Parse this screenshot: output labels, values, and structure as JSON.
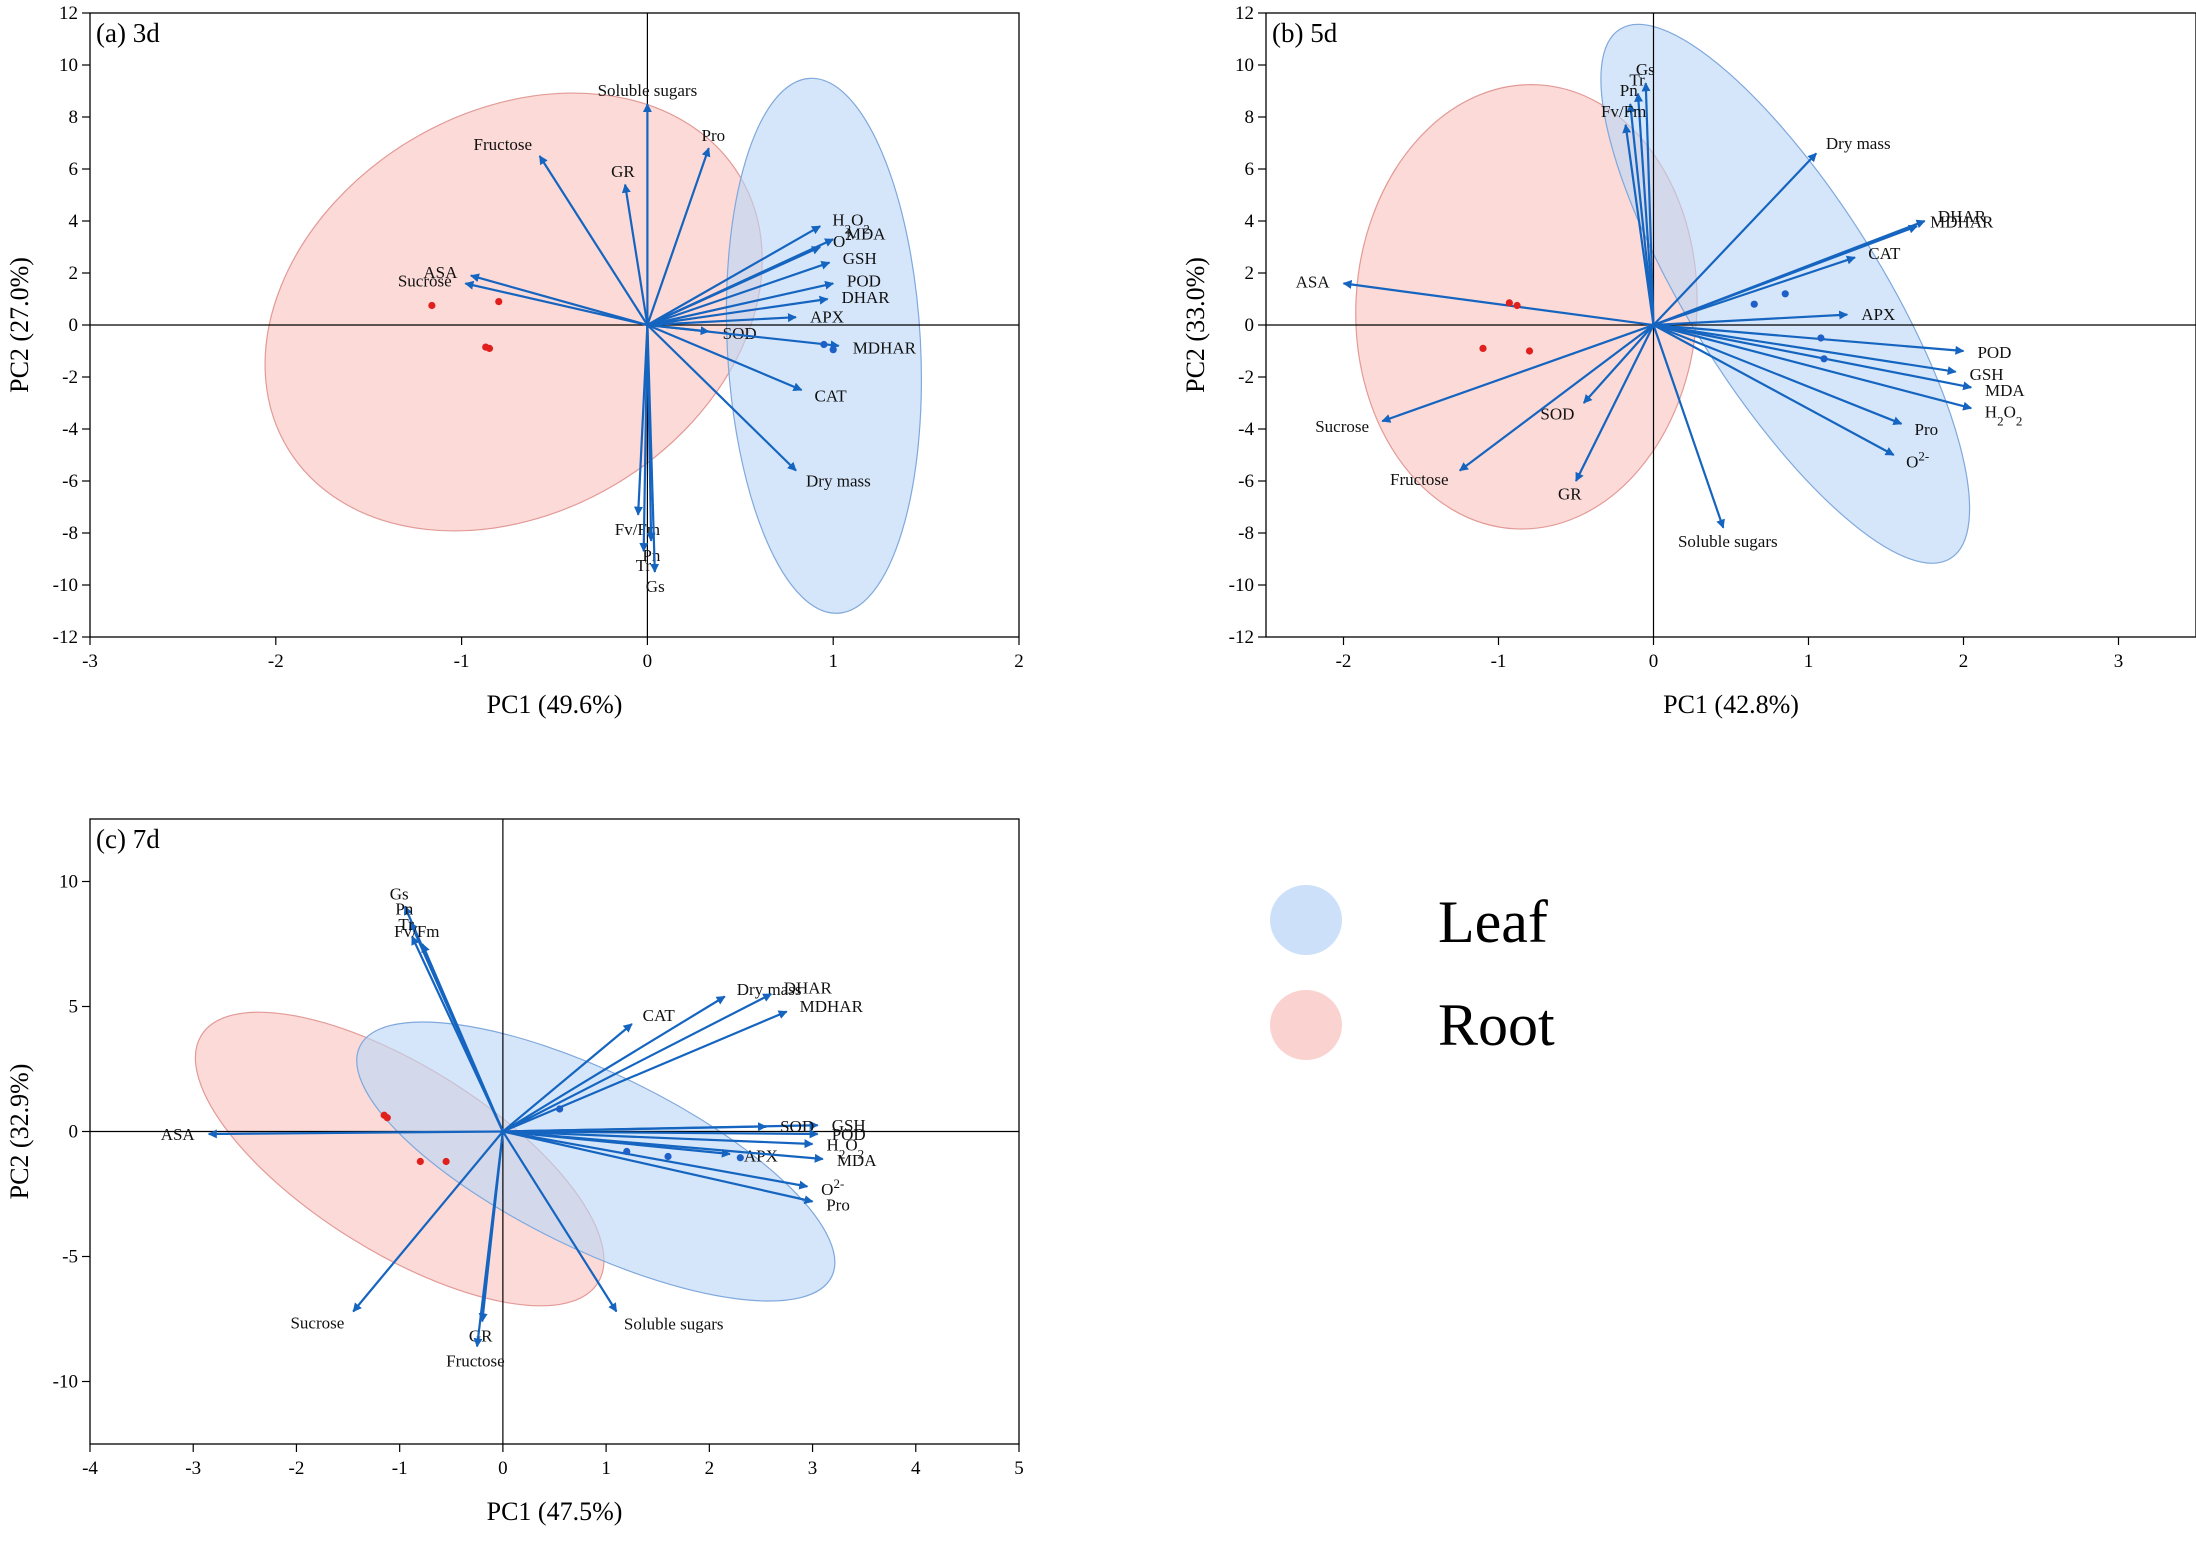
{
  "figure": {
    "legend": [
      {
        "label": "Leaf",
        "color": "#a9c9f2"
      },
      {
        "label": "Root",
        "color": "#f6b3b0"
      }
    ]
  },
  "colors": {
    "arrow": "#1565c0",
    "leaf_fill": "#bcd6f7",
    "leaf_stroke": "#7fa8dc",
    "root_fill": "#f8c4c0",
    "root_stroke": "#e39a96",
    "leaf_point": "#1e5fc8",
    "root_point": "#e0201c"
  },
  "chart_data": [
    {
      "type": "scatter",
      "title": "(a) 3d",
      "xlabel": "PC1 (49.6%)",
      "ylabel": "PC2 (27.0%)",
      "xlim": [
        -3,
        2
      ],
      "ylim": [
        -12,
        12
      ],
      "xticks": [
        -3,
        -2,
        -1,
        0,
        1,
        2
      ],
      "yticks": [
        -12,
        -10,
        -8,
        -6,
        -4,
        -2,
        0,
        2,
        4,
        6,
        8,
        10,
        12
      ],
      "loadings": [
        {
          "label": "Soluble sugars",
          "x": 0.0,
          "y": 8.5
        },
        {
          "label": "Pro",
          "x": 0.33,
          "y": 6.8
        },
        {
          "label": "Fructose",
          "x": -0.58,
          "y": 6.5
        },
        {
          "label": "GR",
          "x": -0.12,
          "y": 5.4
        },
        {
          "label": "ASA",
          "x": -0.95,
          "y": 1.9
        },
        {
          "label": "Sucrose",
          "x": -0.98,
          "y": 1.6
        },
        {
          "label": "H2O2",
          "x": 0.93,
          "y": 3.8
        },
        {
          "label": "O2-",
          "x": 0.93,
          "y": 3.0
        },
        {
          "label": "MDA",
          "x": 1.0,
          "y": 3.3
        },
        {
          "label": "GSH",
          "x": 0.98,
          "y": 2.4
        },
        {
          "label": "POD",
          "x": 1.0,
          "y": 1.6
        },
        {
          "label": "DHAR",
          "x": 0.97,
          "y": 1.0
        },
        {
          "label": "APX",
          "x": 0.8,
          "y": 0.3
        },
        {
          "label": "SOD",
          "x": 0.33,
          "y": -0.25
        },
        {
          "label": "MDHAR",
          "x": 1.03,
          "y": -0.8
        },
        {
          "label": "CAT",
          "x": 0.83,
          "y": -2.5
        },
        {
          "label": "Dry mass",
          "x": 0.8,
          "y": -5.6
        },
        {
          "label": "Fv/Fm",
          "x": -0.05,
          "y": -7.3
        },
        {
          "label": "Pn",
          "x": 0.02,
          "y": -8.3
        },
        {
          "label": "Tr",
          "x": -0.02,
          "y": -8.7
        },
        {
          "label": "Gs",
          "x": 0.04,
          "y": -9.5
        }
      ],
      "groups": [
        {
          "name": "Root",
          "ellipse": {
            "cx": -0.72,
            "cy": 0.5,
            "rx": 1.42,
            "ry": 7.7,
            "rotate": -31
          },
          "points": [
            [
              -1.16,
              0.75
            ],
            [
              -0.8,
              0.9
            ],
            [
              -0.87,
              -0.85
            ],
            [
              -0.85,
              -0.9
            ]
          ]
        },
        {
          "name": "Leaf",
          "ellipse": {
            "cx": 0.95,
            "cy": -0.8,
            "rx": 0.52,
            "ry": 10.3,
            "rotate": -3
          },
          "points": [
            [
              0.95,
              -0.75
            ],
            [
              1.0,
              -0.95
            ]
          ]
        }
      ]
    },
    {
      "type": "scatter",
      "title": "(b) 5d",
      "xlabel": "PC1 (42.8%)",
      "ylabel": "PC2 (33.0%)",
      "xlim": [
        -2.5,
        3.5
      ],
      "ylim": [
        -12,
        12
      ],
      "xticks": [
        -2,
        -1,
        0,
        1,
        2,
        3
      ],
      "yticks": [
        -12,
        -10,
        -8,
        -6,
        -4,
        -2,
        0,
        2,
        4,
        6,
        8,
        10,
        12
      ],
      "loadings": [
        {
          "label": "Gs",
          "x": -0.05,
          "y": 9.3
        },
        {
          "label": "Tr",
          "x": -0.1,
          "y": 8.9
        },
        {
          "label": "Pn",
          "x": -0.15,
          "y": 8.5
        },
        {
          "label": "Fv/Fm",
          "x": -0.18,
          "y": 7.7
        },
        {
          "label": "Dry mass",
          "x": 1.05,
          "y": 6.6
        },
        {
          "label": "DHAR",
          "x": 1.75,
          "y": 4.0
        },
        {
          "label": "MDHAR",
          "x": 1.7,
          "y": 3.8
        },
        {
          "label": "CAT",
          "x": 1.3,
          "y": 2.6
        },
        {
          "label": "ASA",
          "x": -2.0,
          "y": 1.6
        },
        {
          "label": "APX",
          "x": 1.25,
          "y": 0.4
        },
        {
          "label": "POD",
          "x": 2.0,
          "y": -1.0
        },
        {
          "label": "GSH",
          "x": 1.95,
          "y": -1.8
        },
        {
          "label": "MDA",
          "x": 2.05,
          "y": -2.4
        },
        {
          "label": "Pro",
          "x": 1.6,
          "y": -3.8
        },
        {
          "label": "H2O2",
          "x": 2.05,
          "y": -3.2
        },
        {
          "label": "O2-",
          "x": 1.55,
          "y": -5.0
        },
        {
          "label": "Sucrose",
          "x": -1.75,
          "y": -3.7
        },
        {
          "label": "SOD",
          "x": -0.45,
          "y": -3.0
        },
        {
          "label": "Fructose",
          "x": -1.25,
          "y": -5.6
        },
        {
          "label": "GR",
          "x": -0.5,
          "y": -6.0
        },
        {
          "label": "Soluble sugars",
          "x": 0.45,
          "y": -7.8
        }
      ],
      "groups": [
        {
          "name": "Root",
          "ellipse": {
            "cx": -0.82,
            "cy": 0.7,
            "rx": 1.1,
            "ry": 8.55,
            "rotate": 3
          },
          "points": [
            [
              -0.93,
              0.85
            ],
            [
              -0.88,
              0.75
            ],
            [
              -1.1,
              -0.9
            ],
            [
              -0.8,
              -1.0
            ]
          ]
        },
        {
          "name": "Leaf",
          "ellipse": {
            "cx": 0.85,
            "cy": 1.2,
            "rx": 0.62,
            "ry": 12.0,
            "rotate": -32
          },
          "points": [
            [
              0.65,
              0.8
            ],
            [
              0.85,
              1.2
            ],
            [
              1.08,
              -0.5
            ],
            [
              1.1,
              -1.3
            ]
          ]
        }
      ]
    },
    {
      "type": "scatter",
      "title": "(c) 7d",
      "xlabel": "PC1 (47.5%)",
      "ylabel": "PC2 (32.9%)",
      "xlim": [
        -4,
        5
      ],
      "ylim": [
        -12.5,
        12.5
      ],
      "xticks": [
        -4,
        -3,
        -2,
        -1,
        0,
        1,
        2,
        3,
        4,
        5
      ],
      "yticks": [
        -10,
        -5,
        0,
        5,
        10
      ],
      "loadings": [
        {
          "label": "Gs",
          "x": -0.95,
          "y": 9.0
        },
        {
          "label": "Pn",
          "x": -0.9,
          "y": 8.4
        },
        {
          "label": "Tr",
          "x": -0.88,
          "y": 7.8
        },
        {
          "label": "Fv/Fm",
          "x": -0.78,
          "y": 7.5
        },
        {
          "label": "CAT",
          "x": 1.25,
          "y": 4.3
        },
        {
          "label": "Dry mass",
          "x": 2.15,
          "y": 5.4
        },
        {
          "label": "DHAR",
          "x": 2.6,
          "y": 5.5
        },
        {
          "label": "MDHAR",
          "x": 2.75,
          "y": 4.8
        },
        {
          "label": "ASA",
          "x": -2.85,
          "y": -0.1
        },
        {
          "label": "GSH",
          "x": 3.05,
          "y": 0.25
        },
        {
          "label": "SOD",
          "x": 2.55,
          "y": 0.2
        },
        {
          "label": "POD",
          "x": 3.05,
          "y": -0.1
        },
        {
          "label": "H2O2",
          "x": 3.0,
          "y": -0.5
        },
        {
          "label": "APX",
          "x": 2.2,
          "y": -0.9
        },
        {
          "label": "MDA",
          "x": 3.1,
          "y": -1.1
        },
        {
          "label": "O2-",
          "x": 2.95,
          "y": -2.2
        },
        {
          "label": "Pro",
          "x": 3.0,
          "y": -2.8
        },
        {
          "label": "Sucrose",
          "x": -1.45,
          "y": -7.2
        },
        {
          "label": "GR",
          "x": -0.2,
          "y": -7.6
        },
        {
          "label": "Fructose",
          "x": -0.25,
          "y": -8.6
        },
        {
          "label": "Soluble sugars",
          "x": 1.1,
          "y": -7.2
        }
      ],
      "groups": [
        {
          "name": "Root",
          "ellipse": {
            "cx": -1.0,
            "cy": -1.1,
            "rx": 0.9,
            "ry": 9.35,
            "rotate": -58
          },
          "points": [
            [
              -1.15,
              0.65
            ],
            [
              -1.12,
              0.55
            ],
            [
              -0.8,
              -1.2
            ],
            [
              -0.55,
              -1.2
            ]
          ]
        },
        {
          "name": "Leaf",
          "ellipse": {
            "cx": 0.9,
            "cy": -1.2,
            "rx": 0.85,
            "ry": 10.5,
            "rotate": -64
          },
          "points": [
            [
              0.55,
              0.9
            ],
            [
              1.2,
              -0.8
            ],
            [
              1.6,
              -1.0
            ],
            [
              2.3,
              -1.05
            ]
          ]
        }
      ]
    }
  ]
}
